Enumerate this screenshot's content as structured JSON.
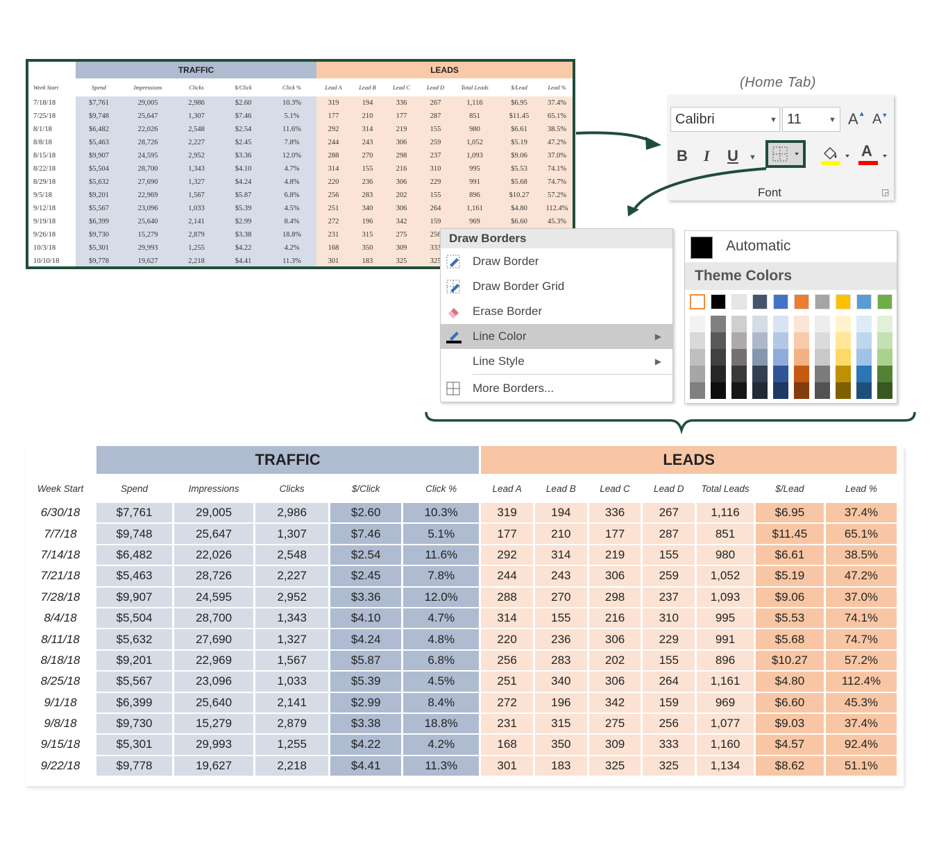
{
  "ribbon": {
    "tab_caption": "(Home Tab)",
    "font_name": "Calibri",
    "font_size": "11",
    "grow_font": "A",
    "shrink_font": "A",
    "bold": "B",
    "italic": "I",
    "underline": "U",
    "font_color_letter": "A",
    "group_label": "Font",
    "icons": [
      "dropdown-arrow-icon",
      "borders-icon",
      "fill-color-icon",
      "font-color-icon",
      "dialog-launcher-icon"
    ]
  },
  "borders_menu": {
    "header": "Draw Borders",
    "items": [
      {
        "label": "Draw Border",
        "icon": "pencil-border-icon"
      },
      {
        "label": "Draw Border Grid",
        "icon": "pencil-grid-icon"
      },
      {
        "label": "Erase Border",
        "icon": "eraser-icon"
      },
      {
        "label": "Line Color",
        "icon": "line-color-icon",
        "submenu": true,
        "highlighted": true
      },
      {
        "label": "Line Style",
        "icon": "",
        "submenu": true
      },
      {
        "label": "More Borders...",
        "icon": "grid-icon"
      }
    ]
  },
  "color_picker": {
    "automatic_label": "Automatic",
    "theme_header": "Theme Colors",
    "theme_top": [
      "#ffffff",
      "#000000",
      "#e7e6e6",
      "#44546a",
      "#4472c4",
      "#ed7d31",
      "#a5a5a5",
      "#ffc000",
      "#5b9bd5",
      "#70ad47"
    ],
    "theme_shades": [
      [
        "#f2f2f2",
        "#d9d9d9",
        "#bfbfbf",
        "#a6a6a6",
        "#808080"
      ],
      [
        "#808080",
        "#595959",
        "#404040",
        "#262626",
        "#0d0d0d"
      ],
      [
        "#d0cece",
        "#aeaaaa",
        "#757171",
        "#3a3838",
        "#171616"
      ],
      [
        "#d6dce5",
        "#adb9ca",
        "#8497b0",
        "#333f50",
        "#222a35"
      ],
      [
        "#dae3f3",
        "#b4c7e7",
        "#8faadc",
        "#2f5597",
        "#1f3864"
      ],
      [
        "#fbe5d6",
        "#f8cbad",
        "#f4b183",
        "#c55a11",
        "#843c0c"
      ],
      [
        "#ededed",
        "#dbdbdb",
        "#c9c9c9",
        "#7b7b7b",
        "#525252"
      ],
      [
        "#fff2cc",
        "#ffe699",
        "#ffd966",
        "#bf9000",
        "#7f6000"
      ],
      [
        "#deebf7",
        "#bdd7ee",
        "#9dc3e6",
        "#2e75b6",
        "#1f4e79"
      ],
      [
        "#e2f0d9",
        "#c5e0b4",
        "#a9d18e",
        "#548235",
        "#385723"
      ]
    ]
  },
  "small_table": {
    "groups": {
      "traffic": "TRAFFIC",
      "leads": "LEADS"
    },
    "headers": [
      "Week Start",
      "Spend",
      "Impressions",
      "Clicks",
      "$/Click",
      "Click %",
      "Lead A",
      "Lead B",
      "Lead C",
      "Lead D",
      "Total Leads",
      "$/Lead",
      "Lead %"
    ],
    "rows": [
      [
        "7/18/18",
        "$7,761",
        "29,005",
        "2,986",
        "$2.60",
        "10.3%",
        "319",
        "194",
        "336",
        "267",
        "1,116",
        "$6.95",
        "37.4%"
      ],
      [
        "7/25/18",
        "$9,748",
        "25,647",
        "1,307",
        "$7.46",
        "5.1%",
        "177",
        "210",
        "177",
        "287",
        "851",
        "$11.45",
        "65.1%"
      ],
      [
        "8/1/18",
        "$6,482",
        "22,026",
        "2,548",
        "$2.54",
        "11.6%",
        "292",
        "314",
        "219",
        "155",
        "980",
        "$6.61",
        "38.5%"
      ],
      [
        "8/8/18",
        "$5,463",
        "28,726",
        "2,227",
        "$2.45",
        "7.8%",
        "244",
        "243",
        "306",
        "259",
        "1,052",
        "$5.19",
        "47.2%"
      ],
      [
        "8/15/18",
        "$9,907",
        "24,595",
        "2,952",
        "$3.36",
        "12.0%",
        "288",
        "270",
        "298",
        "237",
        "1,093",
        "$9.06",
        "37.0%"
      ],
      [
        "8/22/18",
        "$5,504",
        "28,700",
        "1,343",
        "$4.10",
        "4.7%",
        "314",
        "155",
        "216",
        "310",
        "995",
        "$5.53",
        "74.1%"
      ],
      [
        "8/29/18",
        "$5,632",
        "27,690",
        "1,327",
        "$4.24",
        "4.8%",
        "220",
        "236",
        "306",
        "229",
        "991",
        "$5.68",
        "74.7%"
      ],
      [
        "9/5/18",
        "$9,201",
        "22,969",
        "1,567",
        "$5.87",
        "6.8%",
        "256",
        "283",
        "202",
        "155",
        "896",
        "$10.27",
        "57.2%"
      ],
      [
        "9/12/18",
        "$5,567",
        "23,096",
        "1,033",
        "$5.39",
        "4.5%",
        "251",
        "340",
        "306",
        "264",
        "1,161",
        "$4.80",
        "112.4%"
      ],
      [
        "9/19/18",
        "$6,399",
        "25,640",
        "2,141",
        "$2.99",
        "8.4%",
        "272",
        "196",
        "342",
        "159",
        "969",
        "$6.60",
        "45.3%"
      ],
      [
        "9/26/18",
        "$9,730",
        "15,279",
        "2,879",
        "$3.38",
        "18.8%",
        "231",
        "315",
        "275",
        "256",
        "",
        "",
        ""
      ],
      [
        "10/3/18",
        "$5,301",
        "29,993",
        "1,255",
        "$4.22",
        "4.2%",
        "168",
        "350",
        "309",
        "333",
        "",
        "",
        ""
      ],
      [
        "10/10/18",
        "$9,778",
        "19,627",
        "2,218",
        "$4.41",
        "11.3%",
        "301",
        "183",
        "325",
        "325",
        "",
        "",
        ""
      ]
    ]
  },
  "big_table": {
    "groups": {
      "traffic": "TRAFFIC",
      "leads": "LEADS"
    },
    "headers": [
      "Week Start",
      "Spend",
      "Impressions",
      "Clicks",
      "$/Click",
      "Click %",
      "Lead A",
      "Lead B",
      "Lead C",
      "Lead D",
      "Total Leads",
      "$/Lead",
      "Lead %"
    ],
    "rows": [
      [
        "6/30/18",
        "$7,761",
        "29,005",
        "2,986",
        "$2.60",
        "10.3%",
        "319",
        "194",
        "336",
        "267",
        "1,116",
        "$6.95",
        "37.4%"
      ],
      [
        "7/7/18",
        "$9,748",
        "25,647",
        "1,307",
        "$7.46",
        "5.1%",
        "177",
        "210",
        "177",
        "287",
        "851",
        "$11.45",
        "65.1%"
      ],
      [
        "7/14/18",
        "$6,482",
        "22,026",
        "2,548",
        "$2.54",
        "11.6%",
        "292",
        "314",
        "219",
        "155",
        "980",
        "$6.61",
        "38.5%"
      ],
      [
        "7/21/18",
        "$5,463",
        "28,726",
        "2,227",
        "$2.45",
        "7.8%",
        "244",
        "243",
        "306",
        "259",
        "1,052",
        "$5.19",
        "47.2%"
      ],
      [
        "7/28/18",
        "$9,907",
        "24,595",
        "2,952",
        "$3.36",
        "12.0%",
        "288",
        "270",
        "298",
        "237",
        "1,093",
        "$9.06",
        "37.0%"
      ],
      [
        "8/4/18",
        "$5,504",
        "28,700",
        "1,343",
        "$4.10",
        "4.7%",
        "314",
        "155",
        "216",
        "310",
        "995",
        "$5.53",
        "74.1%"
      ],
      [
        "8/11/18",
        "$5,632",
        "27,690",
        "1,327",
        "$4.24",
        "4.8%",
        "220",
        "236",
        "306",
        "229",
        "991",
        "$5.68",
        "74.7%"
      ],
      [
        "8/18/18",
        "$9,201",
        "22,969",
        "1,567",
        "$5.87",
        "6.8%",
        "256",
        "283",
        "202",
        "155",
        "896",
        "$10.27",
        "57.2%"
      ],
      [
        "8/25/18",
        "$5,567",
        "23,096",
        "1,033",
        "$5.39",
        "4.5%",
        "251",
        "340",
        "306",
        "264",
        "1,161",
        "$4.80",
        "112.4%"
      ],
      [
        "9/1/18",
        "$6,399",
        "25,640",
        "2,141",
        "$2.99",
        "8.4%",
        "272",
        "196",
        "342",
        "159",
        "969",
        "$6.60",
        "45.3%"
      ],
      [
        "9/8/18",
        "$9,730",
        "15,279",
        "2,879",
        "$3.38",
        "18.8%",
        "231",
        "315",
        "275",
        "256",
        "1,077",
        "$9.03",
        "37.4%"
      ],
      [
        "9/15/18",
        "$5,301",
        "29,993",
        "1,255",
        "$4.22",
        "4.2%",
        "168",
        "350",
        "309",
        "333",
        "1,160",
        "$4.57",
        "92.4%"
      ],
      [
        "9/22/18",
        "$9,778",
        "19,627",
        "2,218",
        "$4.41",
        "11.3%",
        "301",
        "183",
        "325",
        "325",
        "1,134",
        "$8.62",
        "51.1%"
      ]
    ]
  },
  "colors": {
    "frame_green": "#1f4d39",
    "traffic_light": "#d6dce6",
    "traffic_dark": "#aebbd0",
    "leads_light": "#fbe2d3",
    "leads_dark": "#f8c6a4"
  }
}
